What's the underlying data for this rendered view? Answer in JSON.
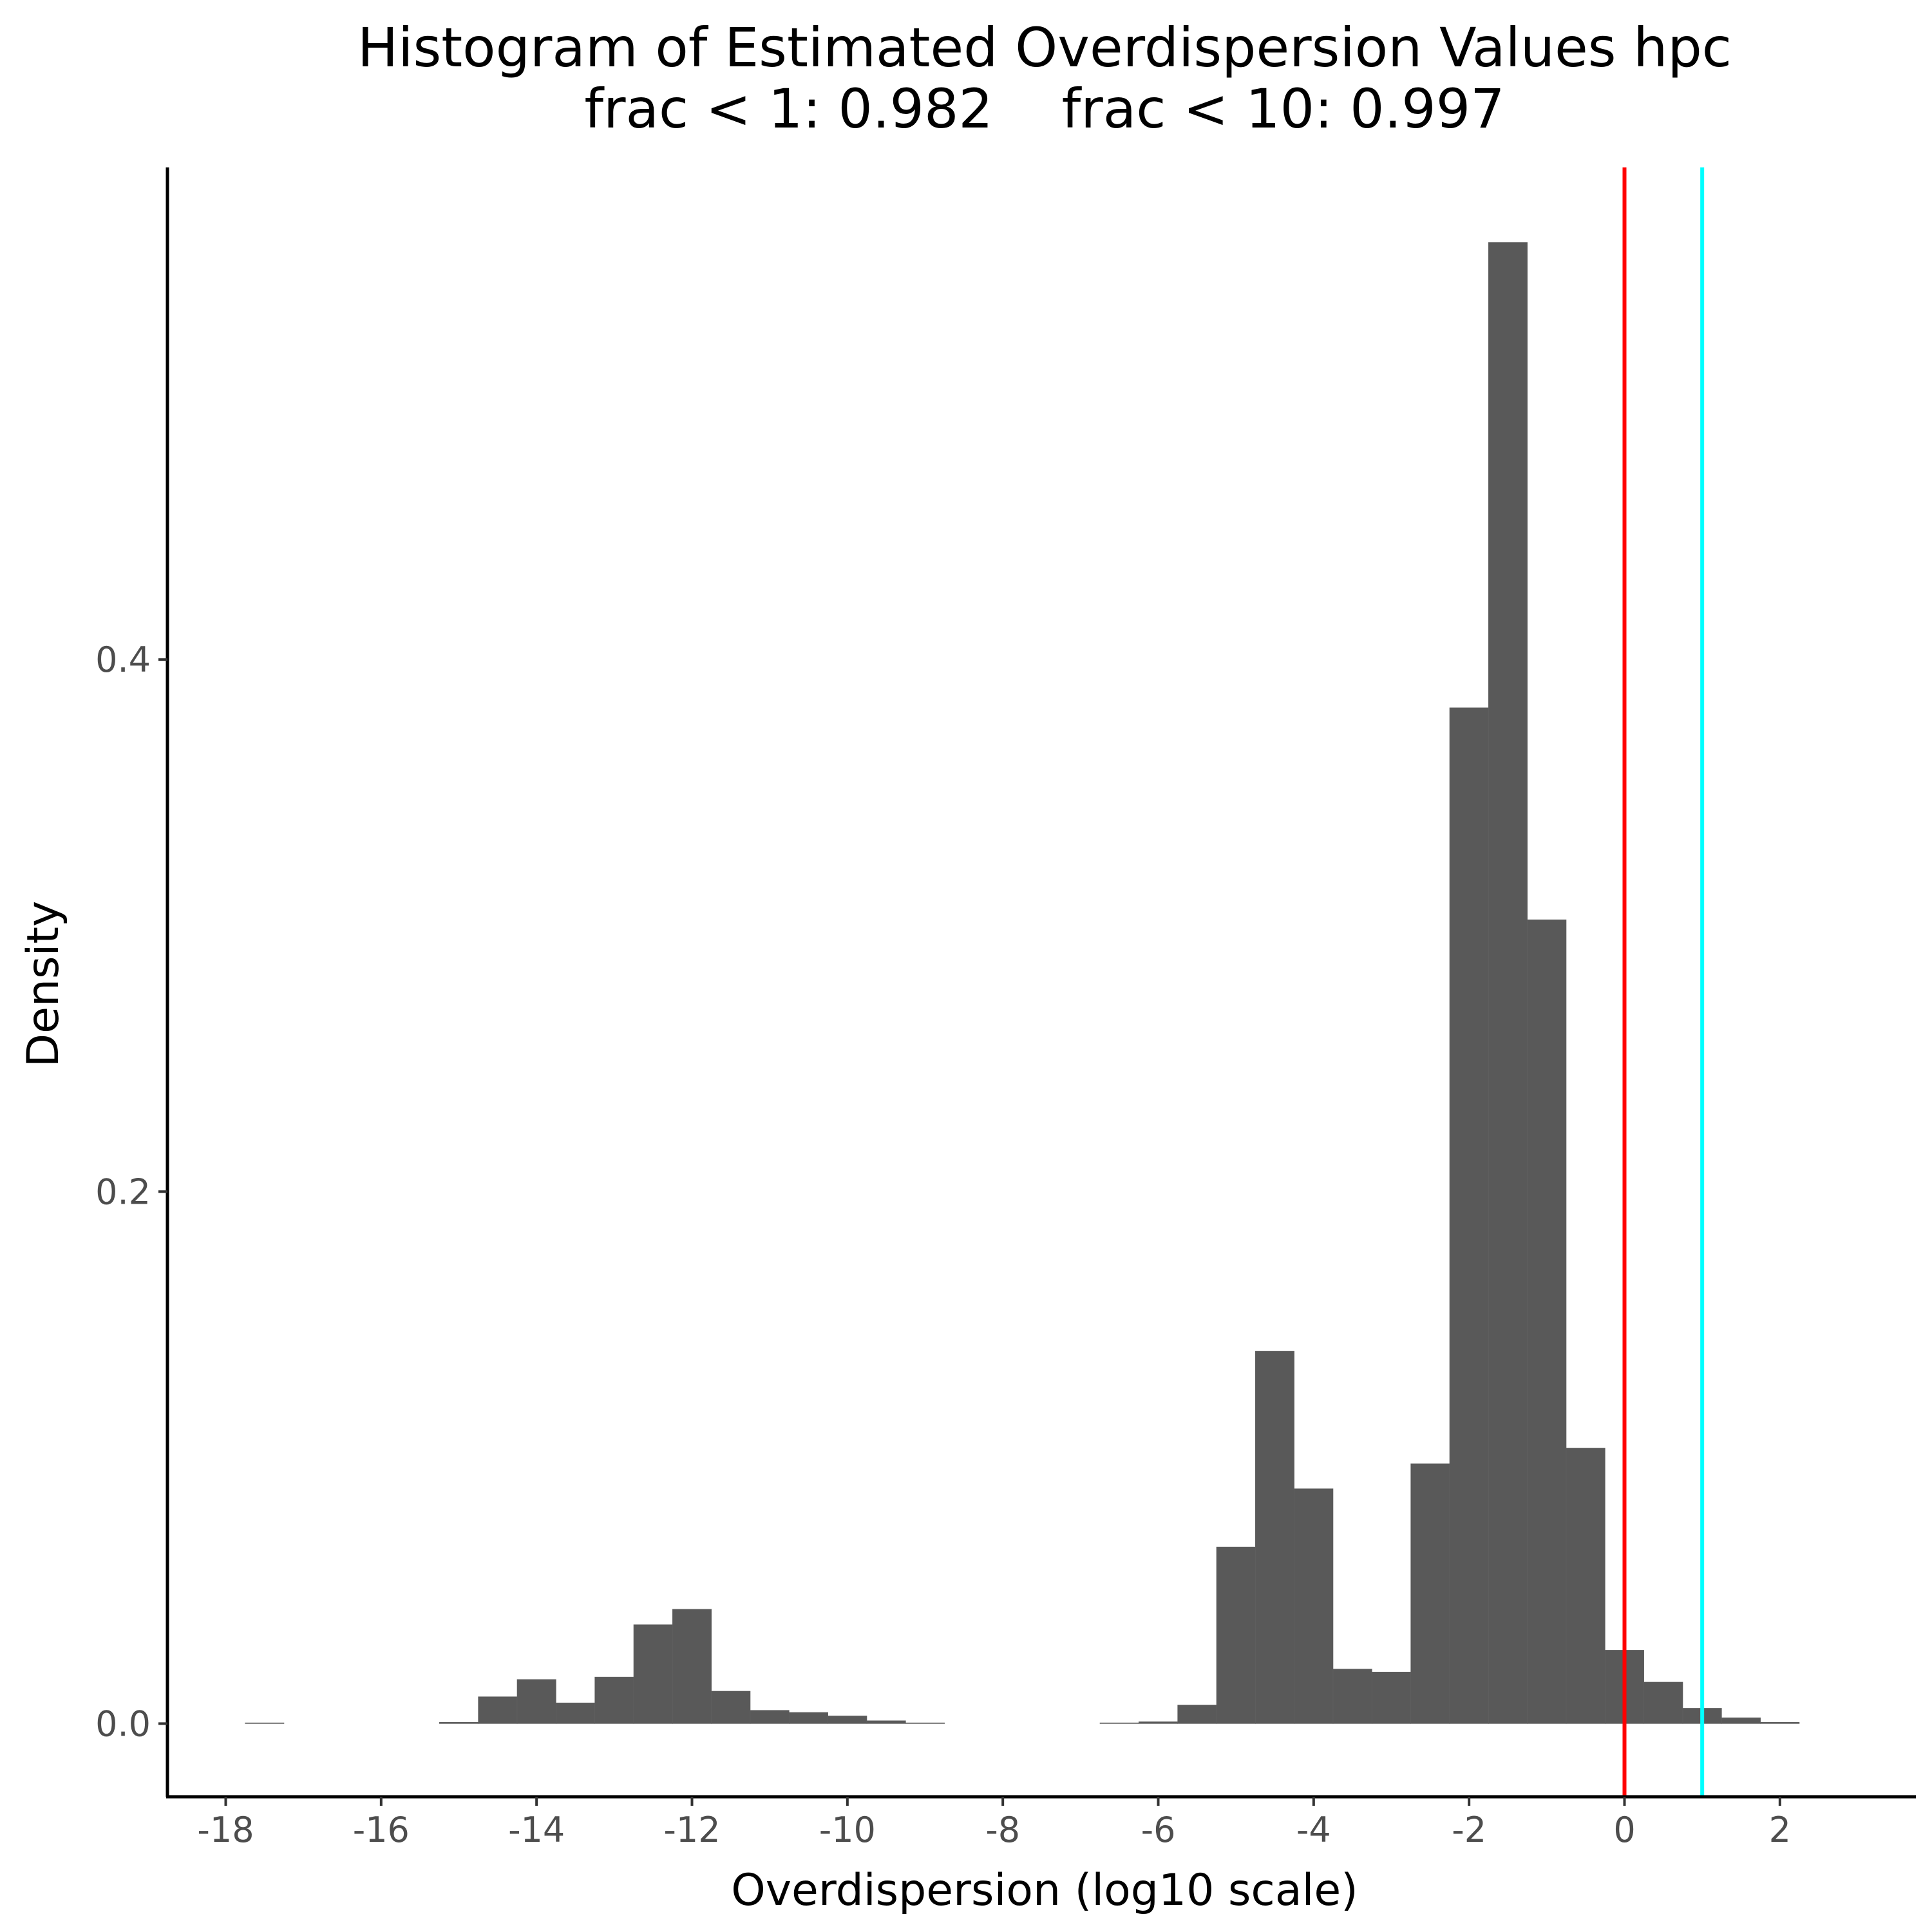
{
  "chart_data": {
    "type": "histogram",
    "title": "Histogram of Estimated Overdispersion Values hpc",
    "subtitle": "frac < 1: 0.982    frac < 10: 0.997",
    "xlabel": "Overdispersion (log10 scale)",
    "ylabel": "Density",
    "xlim": [
      -18.75,
      3.75
    ],
    "ylim": [
      -0.0275,
      0.585
    ],
    "x_ticks": [
      -18,
      -16,
      -14,
      -12,
      -10,
      -8,
      -6,
      -4,
      -2,
      0,
      2
    ],
    "x_tick_labels": [
      "-18",
      "-16",
      "-14",
      "-12",
      "-10",
      "-8",
      "-6",
      "-4",
      "-2",
      "0",
      "2"
    ],
    "y_ticks": [
      0.0,
      0.2,
      0.4
    ],
    "y_tick_labels": [
      "0.0",
      "0.2",
      "0.4"
    ],
    "bin_width": 0.5,
    "bins": [
      {
        "x0": -17.75,
        "x1": -17.25,
        "density": 0.0003
      },
      {
        "x0": -15.25,
        "x1": -14.75,
        "density": 0.0005
      },
      {
        "x0": -14.75,
        "x1": -14.25,
        "density": 0.0101
      },
      {
        "x0": -14.25,
        "x1": -13.75,
        "density": 0.0166
      },
      {
        "x0": -13.75,
        "x1": -13.25,
        "density": 0.0078
      },
      {
        "x0": -13.25,
        "x1": -12.75,
        "density": 0.0175
      },
      {
        "x0": -12.75,
        "x1": -12.25,
        "density": 0.0372
      },
      {
        "x0": -12.25,
        "x1": -11.75,
        "density": 0.043
      },
      {
        "x0": -11.75,
        "x1": -11.25,
        "density": 0.0122
      },
      {
        "x0": -11.25,
        "x1": -10.75,
        "density": 0.005
      },
      {
        "x0": -10.75,
        "x1": -10.25,
        "density": 0.0042
      },
      {
        "x0": -10.25,
        "x1": -9.75,
        "density": 0.0029
      },
      {
        "x0": -9.75,
        "x1": -9.25,
        "density": 0.0011
      },
      {
        "x0": -9.25,
        "x1": -8.75,
        "density": 0.0003
      },
      {
        "x0": -6.75,
        "x1": -6.25,
        "density": 0.0003
      },
      {
        "x0": -6.25,
        "x1": -5.75,
        "density": 0.0007
      },
      {
        "x0": -5.75,
        "x1": -5.25,
        "density": 0.007
      },
      {
        "x0": -5.25,
        "x1": -4.75,
        "density": 0.0664
      },
      {
        "x0": -4.75,
        "x1": -4.25,
        "density": 0.14
      },
      {
        "x0": -4.25,
        "x1": -3.75,
        "density": 0.0883
      },
      {
        "x0": -3.75,
        "x1": -3.25,
        "density": 0.0205
      },
      {
        "x0": -3.25,
        "x1": -2.75,
        "density": 0.0194
      },
      {
        "x0": -2.75,
        "x1": -2.25,
        "density": 0.0977
      },
      {
        "x0": -2.25,
        "x1": -1.75,
        "density": 0.3819
      },
      {
        "x0": -1.75,
        "x1": -1.25,
        "density": 0.5568
      },
      {
        "x0": -1.25,
        "x1": -0.75,
        "density": 0.3022
      },
      {
        "x0": -0.75,
        "x1": -0.25,
        "density": 0.1036
      },
      {
        "x0": -0.25,
        "x1": 0.25,
        "density": 0.0276
      },
      {
        "x0": 0.25,
        "x1": 0.75,
        "density": 0.0156
      },
      {
        "x0": 0.75,
        "x1": 1.25,
        "density": 0.0058
      },
      {
        "x0": 1.25,
        "x1": 1.75,
        "density": 0.0022
      },
      {
        "x0": 1.75,
        "x1": 2.25,
        "density": 0.0005
      }
    ],
    "vlines": [
      {
        "x": 0,
        "color": "#ff0000"
      },
      {
        "x": 1,
        "color": "#00ffff"
      }
    ],
    "bar_color": "#595959",
    "grid": false,
    "legend": "none"
  }
}
